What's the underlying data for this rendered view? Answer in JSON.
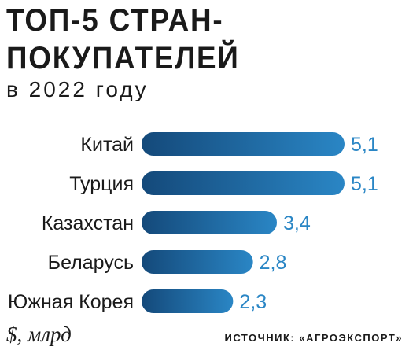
{
  "chart_data": {
    "type": "bar",
    "orientation": "horizontal",
    "title": "ТОП-5 СТРАН-ПОКУПАТЕЛЕЙ",
    "title_lines": [
      "ТОП-5 СТРАН-",
      "ПОКУПАТЕЛЕЙ"
    ],
    "subtitle": "в 2022 году",
    "categories": [
      "Китай",
      "Турция",
      "Казахстан",
      "Беларусь",
      "Южная Корея"
    ],
    "values": [
      5.1,
      5.1,
      3.4,
      2.8,
      2.3
    ],
    "value_labels": [
      "5,1",
      "5,1",
      "3,4",
      "2,8",
      "2,3"
    ],
    "unit": "$, млрд",
    "source": "ИСТОЧНИК: «АГРОЭКСПОРТ»",
    "xlim": [
      0,
      5.1
    ],
    "grid": false,
    "bar_color_dark": "#14497a",
    "bar_color_light": "#2a86c5",
    "label_color": "#2a86c5"
  }
}
